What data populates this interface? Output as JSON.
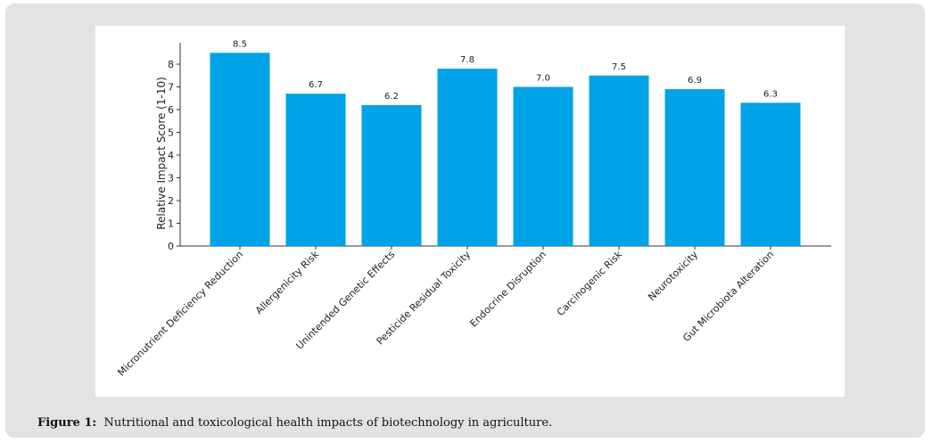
{
  "chart_data": {
    "type": "bar",
    "title": "",
    "xlabel": "",
    "ylabel": "Relative Impact Score (1-10)",
    "ylim": [
      0,
      9
    ],
    "yticks": [
      0,
      1,
      2,
      3,
      4,
      5,
      6,
      7,
      8
    ],
    "categories": [
      "Micronutrient Deficiency Reduction",
      "Allergenicity Risk",
      "Unintended Genetic Effects",
      "Pesticide Residual Toxicity",
      "Endocrine Disruption",
      "Carcinogenic Risk",
      "Neurotoxicity",
      "Gut Microbiota Alteration"
    ],
    "values": [
      8.5,
      6.7,
      6.2,
      7.8,
      7.0,
      7.5,
      6.9,
      6.3
    ],
    "value_labels": [
      "8.5",
      "6.7",
      "6.2",
      "7.8",
      "7.0",
      "7.5",
      "6.9",
      "6.3"
    ],
    "bar_color": "#00a2e8",
    "grid": false
  },
  "caption": {
    "label": "Figure 1:",
    "text": "Nutritional and toxicological health impacts of biotechnology in agriculture."
  }
}
